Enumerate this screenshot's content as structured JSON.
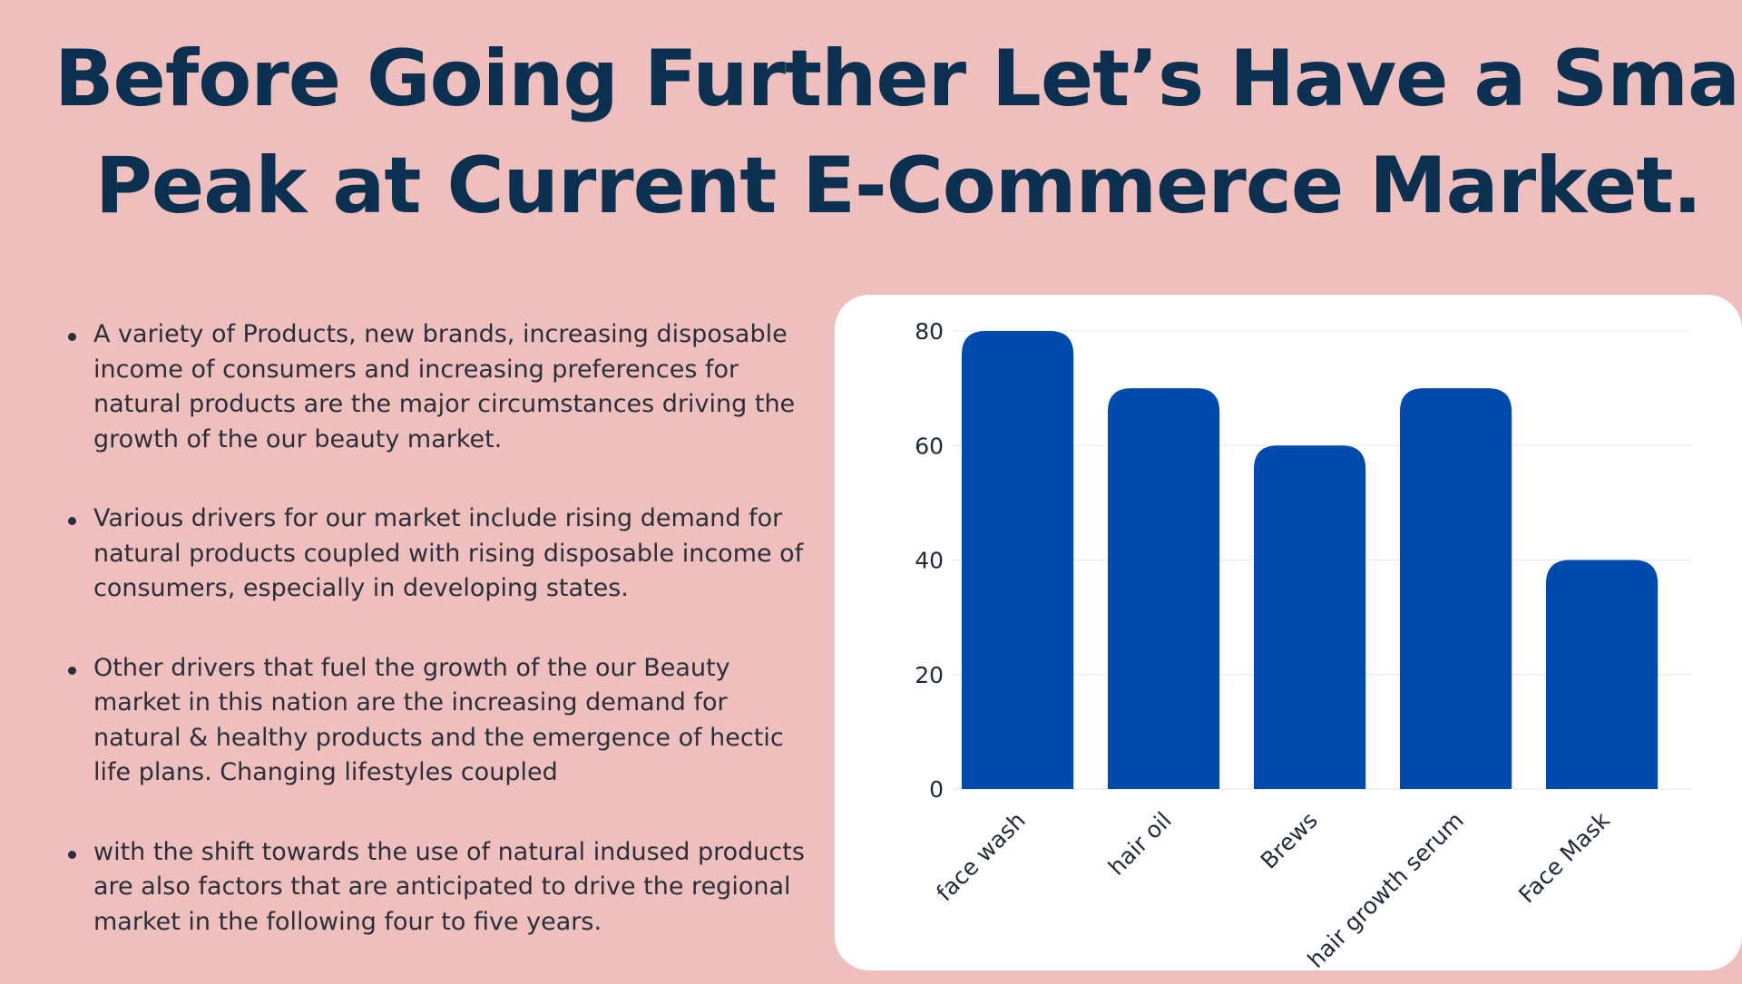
{
  "title": {
    "line1": "Before Going Further Let’s Have a Small",
    "line2": "Peak at Current E-Commerce Market."
  },
  "bullets": [
    "A variety of Products, new brands, increasing disposable income of consumers and increasing preferences for natural products are the major circumstances driving the growth of the our beauty market.",
    "Various drivers for our market include rising demand for natural products coupled with rising disposable income of consumers, especially in developing states.",
    "Other drivers that fuel the growth of the our Beauty market in this nation are the increasing demand for natural & healthy products and the emergence of hectic life plans. Changing lifestyles coupled",
    "with the shift towards the use of natural indused products are also factors that are anticipated to drive the regional market in the following four to five years."
  ],
  "colors": {
    "background": "#eebfbd",
    "title": "#0b3050",
    "bar": "#004aad",
    "card": "#ffffff"
  },
  "chart_data": {
    "type": "bar",
    "categories": [
      "face wash",
      "hair oil",
      "Brews",
      "hair growth serum",
      "Face Mask"
    ],
    "values": [
      80,
      70,
      60,
      70,
      40
    ],
    "yticks": [
      0,
      20,
      40,
      60,
      80
    ],
    "ylim": [
      0,
      80
    ],
    "grid": true
  }
}
